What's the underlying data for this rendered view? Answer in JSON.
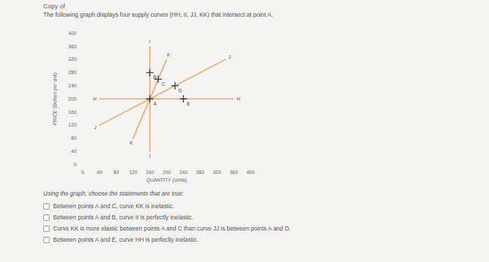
{
  "header": "Copy of",
  "prompt": "The following graph displays four supply curves (HH, II, JJ, KK) that intersect at point A.",
  "chart_data": {
    "type": "line",
    "xlabel": "QUANTITY (Units)",
    "ylabel": "PRICE (Dollars per unit)",
    "xlim": [
      0,
      400
    ],
    "ylim": [
      0,
      400
    ],
    "xticks": [
      0,
      40,
      80,
      120,
      160,
      200,
      240,
      280,
      320,
      360,
      400
    ],
    "yticks": [
      0,
      40,
      80,
      120,
      160,
      200,
      240,
      280,
      320,
      360,
      400
    ],
    "grid": false,
    "series": [
      {
        "name": "HH",
        "label": "H",
        "color": "#f2a35e",
        "x": [
          40,
          360
        ],
        "values": [
          200,
          200
        ]
      },
      {
        "name": "II",
        "label": "I",
        "color": "#f2a35e",
        "x": [
          160,
          160
        ],
        "values": [
          40,
          360
        ]
      },
      {
        "name": "JJ",
        "label": "J",
        "color": "#f2a35e",
        "x": [
          40,
          340
        ],
        "values": [
          120,
          320
        ]
      },
      {
        "name": "KK",
        "label": "K",
        "color": "#f2a35e",
        "x": [
          120,
          200
        ],
        "values": [
          80,
          320
        ]
      }
    ],
    "points": {
      "names": [
        "A",
        "B",
        "C",
        "D",
        "E"
      ],
      "x": [
        160,
        160,
        180,
        220,
        240
      ],
      "values": [
        200,
        280,
        260,
        240,
        200
      ],
      "marker": "plus",
      "color": "#333333"
    }
  },
  "question": "Using the graph, choose the statements that are true:",
  "options": [
    "Between points A and C, curve KK is inelastic.",
    "Between points A and B, curve II is perfectly inelastic.",
    "Curve KK is more elastic between points A and C than curve JJ is between points A and D.",
    "Between points A and E, curve HH is perfectly inelastic."
  ]
}
